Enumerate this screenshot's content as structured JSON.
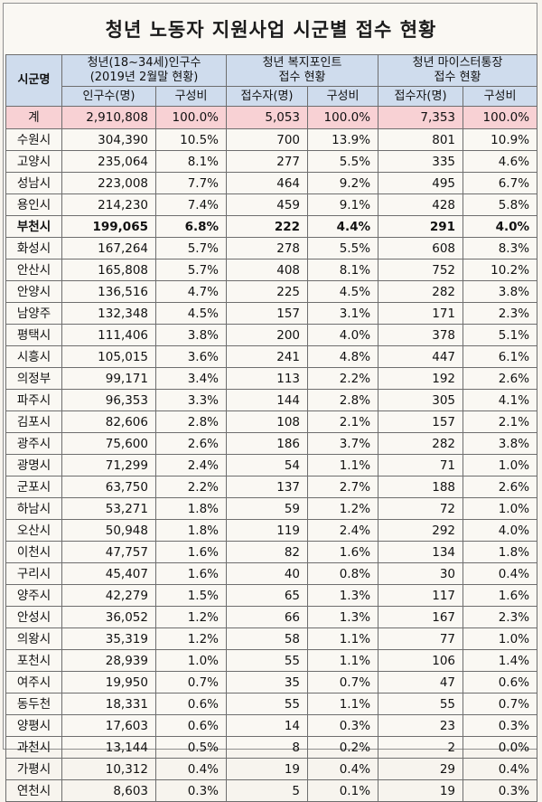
{
  "title": "청년 노동자 지원사업 시군별 접수 현황",
  "headers": {
    "city": "시군명",
    "group1_line1": "청년(18~34세)인구수",
    "group1_line2": "(2019년 2월말 현황)",
    "group2_line1": "청년 복지포인트",
    "group2_line2": "접수 현황",
    "group3_line1": "청년 마이스터통장",
    "group3_line2": "접수 현황",
    "sub_pop": "인구수(명)",
    "sub_ratio1": "구성비",
    "sub_rcv2": "접수자(명)",
    "sub_ratio2": "구성비",
    "sub_rcv3": "접수자(명)",
    "sub_ratio3": "구성비"
  },
  "rows": [
    {
      "city": "계",
      "pop": "2,910,808",
      "pop_pct": "100.0%",
      "wp": "5,053",
      "wp_pct": "100.0%",
      "ms": "7,353",
      "ms_pct": "100.0%",
      "style": "total"
    },
    {
      "city": "수원시",
      "pop": "304,390",
      "pop_pct": "10.5%",
      "wp": "700",
      "wp_pct": "13.9%",
      "ms": "801",
      "ms_pct": "10.9%"
    },
    {
      "city": "고양시",
      "pop": "235,064",
      "pop_pct": "8.1%",
      "wp": "277",
      "wp_pct": "5.5%",
      "ms": "335",
      "ms_pct": "4.6%"
    },
    {
      "city": "성남시",
      "pop": "223,008",
      "pop_pct": "7.7%",
      "wp": "464",
      "wp_pct": "9.2%",
      "ms": "495",
      "ms_pct": "6.7%"
    },
    {
      "city": "용인시",
      "pop": "214,230",
      "pop_pct": "7.4%",
      "wp": "459",
      "wp_pct": "9.1%",
      "ms": "428",
      "ms_pct": "5.8%"
    },
    {
      "city": "부천시",
      "pop": "199,065",
      "pop_pct": "6.8%",
      "wp": "222",
      "wp_pct": "4.4%",
      "ms": "291",
      "ms_pct": "4.0%",
      "style": "bold"
    },
    {
      "city": "화성시",
      "pop": "167,264",
      "pop_pct": "5.7%",
      "wp": "278",
      "wp_pct": "5.5%",
      "ms": "608",
      "ms_pct": "8.3%"
    },
    {
      "city": "안산시",
      "pop": "165,808",
      "pop_pct": "5.7%",
      "wp": "408",
      "wp_pct": "8.1%",
      "ms": "752",
      "ms_pct": "10.2%"
    },
    {
      "city": "안양시",
      "pop": "136,516",
      "pop_pct": "4.7%",
      "wp": "225",
      "wp_pct": "4.5%",
      "ms": "282",
      "ms_pct": "3.8%"
    },
    {
      "city": "남양주",
      "pop": "132,348",
      "pop_pct": "4.5%",
      "wp": "157",
      "wp_pct": "3.1%",
      "ms": "171",
      "ms_pct": "2.3%"
    },
    {
      "city": "평택시",
      "pop": "111,406",
      "pop_pct": "3.8%",
      "wp": "200",
      "wp_pct": "4.0%",
      "ms": "378",
      "ms_pct": "5.1%"
    },
    {
      "city": "시흥시",
      "pop": "105,015",
      "pop_pct": "3.6%",
      "wp": "241",
      "wp_pct": "4.8%",
      "ms": "447",
      "ms_pct": "6.1%"
    },
    {
      "city": "의정부",
      "pop": "99,171",
      "pop_pct": "3.4%",
      "wp": "113",
      "wp_pct": "2.2%",
      "ms": "192",
      "ms_pct": "2.6%"
    },
    {
      "city": "파주시",
      "pop": "96,353",
      "pop_pct": "3.3%",
      "wp": "144",
      "wp_pct": "2.8%",
      "ms": "305",
      "ms_pct": "4.1%"
    },
    {
      "city": "김포시",
      "pop": "82,606",
      "pop_pct": "2.8%",
      "wp": "108",
      "wp_pct": "2.1%",
      "ms": "157",
      "ms_pct": "2.1%"
    },
    {
      "city": "광주시",
      "pop": "75,600",
      "pop_pct": "2.6%",
      "wp": "186",
      "wp_pct": "3.7%",
      "ms": "282",
      "ms_pct": "3.8%"
    },
    {
      "city": "광명시",
      "pop": "71,299",
      "pop_pct": "2.4%",
      "wp": "54",
      "wp_pct": "1.1%",
      "ms": "71",
      "ms_pct": "1.0%"
    },
    {
      "city": "군포시",
      "pop": "63,750",
      "pop_pct": "2.2%",
      "wp": "137",
      "wp_pct": "2.7%",
      "ms": "188",
      "ms_pct": "2.6%"
    },
    {
      "city": "하남시",
      "pop": "53,271",
      "pop_pct": "1.8%",
      "wp": "59",
      "wp_pct": "1.2%",
      "ms": "72",
      "ms_pct": "1.0%"
    },
    {
      "city": "오산시",
      "pop": "50,948",
      "pop_pct": "1.8%",
      "wp": "119",
      "wp_pct": "2.4%",
      "ms": "292",
      "ms_pct": "4.0%"
    },
    {
      "city": "이천시",
      "pop": "47,757",
      "pop_pct": "1.6%",
      "wp": "82",
      "wp_pct": "1.6%",
      "ms": "134",
      "ms_pct": "1.8%"
    },
    {
      "city": "구리시",
      "pop": "45,407",
      "pop_pct": "1.6%",
      "wp": "40",
      "wp_pct": "0.8%",
      "ms": "30",
      "ms_pct": "0.4%"
    },
    {
      "city": "양주시",
      "pop": "42,279",
      "pop_pct": "1.5%",
      "wp": "65",
      "wp_pct": "1.3%",
      "ms": "117",
      "ms_pct": "1.6%"
    },
    {
      "city": "안성시",
      "pop": "36,052",
      "pop_pct": "1.2%",
      "wp": "66",
      "wp_pct": "1.3%",
      "ms": "167",
      "ms_pct": "2.3%"
    },
    {
      "city": "의왕시",
      "pop": "35,319",
      "pop_pct": "1.2%",
      "wp": "58",
      "wp_pct": "1.1%",
      "ms": "77",
      "ms_pct": "1.0%"
    },
    {
      "city": "포천시",
      "pop": "28,939",
      "pop_pct": "1.0%",
      "wp": "55",
      "wp_pct": "1.1%",
      "ms": "106",
      "ms_pct": "1.4%"
    },
    {
      "city": "여주시",
      "pop": "19,950",
      "pop_pct": "0.7%",
      "wp": "35",
      "wp_pct": "0.7%",
      "ms": "47",
      "ms_pct": "0.6%"
    },
    {
      "city": "동두천",
      "pop": "18,331",
      "pop_pct": "0.6%",
      "wp": "55",
      "wp_pct": "1.1%",
      "ms": "55",
      "ms_pct": "0.7%"
    },
    {
      "city": "양평시",
      "pop": "17,603",
      "pop_pct": "0.6%",
      "wp": "14",
      "wp_pct": "0.3%",
      "ms": "23",
      "ms_pct": "0.3%"
    },
    {
      "city": "과천시",
      "pop": "13,144",
      "pop_pct": "0.5%",
      "wp": "8",
      "wp_pct": "0.2%",
      "ms": "2",
      "ms_pct": "0.0%"
    },
    {
      "city": "가평시",
      "pop": "10,312",
      "pop_pct": "0.4%",
      "wp": "19",
      "wp_pct": "0.4%",
      "ms": "29",
      "ms_pct": "0.4%"
    },
    {
      "city": "연천시",
      "pop": "8,603",
      "pop_pct": "0.3%",
      "wp": "5",
      "wp_pct": "0.1%",
      "ms": "19",
      "ms_pct": "0.3%"
    }
  ]
}
